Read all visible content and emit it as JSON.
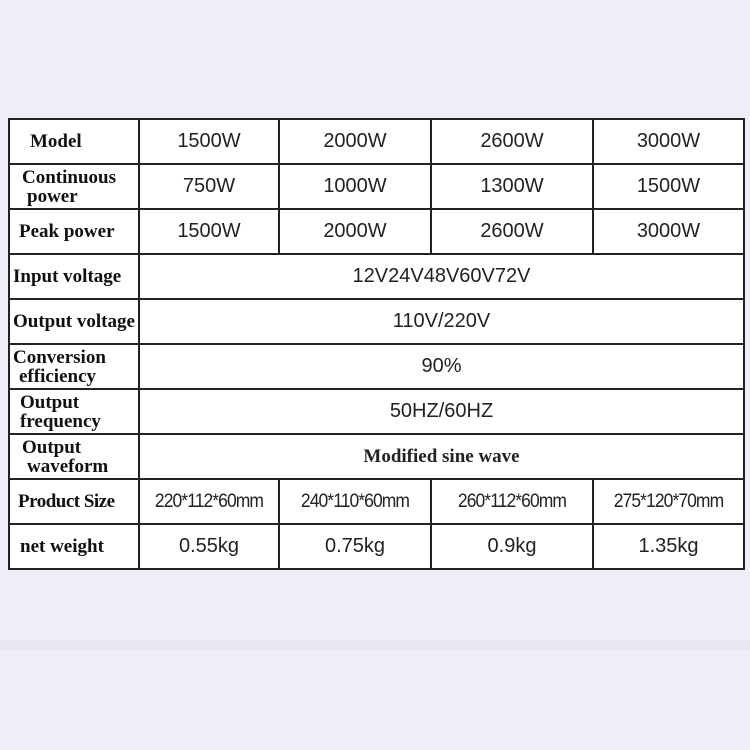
{
  "colors": {
    "background": "#eeeef8",
    "border": "#222222",
    "cell": "#ffffff"
  },
  "table": {
    "model": {
      "label": "Model",
      "values": [
        "1500W",
        "2000W",
        "2600W",
        "3000W"
      ]
    },
    "continuous": {
      "label_1": "Continuous",
      "label_2": "power",
      "values": [
        "750W",
        "1000W",
        "1300W",
        "1500W"
      ]
    },
    "peak": {
      "label": "Peak power",
      "values": [
        "1500W",
        "2000W",
        "2600W",
        "3000W"
      ]
    },
    "input_voltage": {
      "label": "Input voltage",
      "value": "12V24V48V60V72V"
    },
    "output_voltage": {
      "label": "Output voltage",
      "value": "110V/220V"
    },
    "efficiency": {
      "label_1": "Conversion",
      "label_2": "efficiency",
      "value": "90%"
    },
    "frequency": {
      "label_1": "Output",
      "label_2": "frequency",
      "value": "50HZ/60HZ"
    },
    "waveform": {
      "label_1": "Output",
      "label_2": "waveform",
      "value": "Modified sine wave"
    },
    "size": {
      "label": "Product Size",
      "values": [
        "220*112*60mm",
        "240*110*60mm",
        "260*112*60mm",
        "275*120*70mm"
      ]
    },
    "weight": {
      "label": "net weight",
      "values": [
        "0.55kg",
        "0.75kg",
        "0.9kg",
        "1.35kg"
      ]
    }
  }
}
